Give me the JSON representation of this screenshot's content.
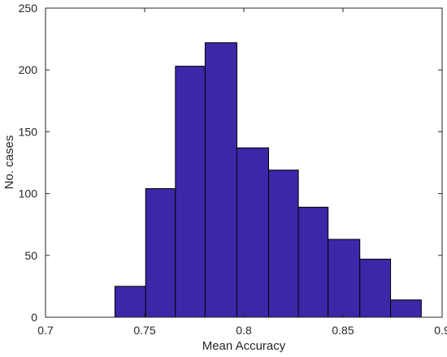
{
  "chart_data": {
    "type": "bar",
    "title": "",
    "xlabel": "Mean Accuracy",
    "ylabel": "No. cases",
    "xlim": [
      0.7,
      0.9
    ],
    "ylim": [
      0,
      250
    ],
    "xticks": [
      0.7,
      0.75,
      0.8,
      0.85,
      0.9
    ],
    "xtick_labels": [
      "0.7",
      "0.75",
      "0.8",
      "0.85",
      "0.9"
    ],
    "yticks": [
      0,
      50,
      100,
      150,
      200,
      250
    ],
    "ytick_labels": [
      "0",
      "50",
      "100",
      "150",
      "200",
      "250"
    ],
    "bins": [
      {
        "start": 0.735,
        "end": 0.7505,
        "value": 25
      },
      {
        "start": 0.7505,
        "end": 0.7655,
        "value": 104
      },
      {
        "start": 0.7655,
        "end": 0.7805,
        "value": 203
      },
      {
        "start": 0.7805,
        "end": 0.7965,
        "value": 222
      },
      {
        "start": 0.7965,
        "end": 0.8125,
        "value": 137
      },
      {
        "start": 0.8125,
        "end": 0.8275,
        "value": 119
      },
      {
        "start": 0.8275,
        "end": 0.8425,
        "value": 89
      },
      {
        "start": 0.8425,
        "end": 0.8585,
        "value": 63
      },
      {
        "start": 0.8585,
        "end": 0.874,
        "value": 47
      },
      {
        "start": 0.874,
        "end": 0.8895,
        "value": 14
      }
    ],
    "bar_color": "#3d27a8",
    "grid": false,
    "legend": "none"
  }
}
